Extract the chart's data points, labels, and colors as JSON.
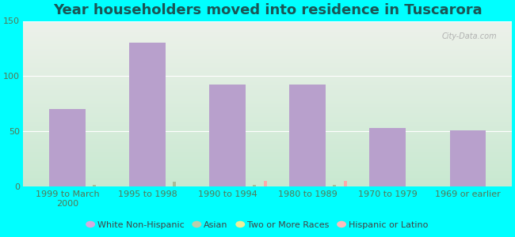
{
  "title": "Year householders moved into residence in Tuscarora",
  "categories": [
    "1999 to March\n2000",
    "1995 to 1998",
    "1990 to 1994",
    "1980 to 1989",
    "1970 to 1979",
    "1969 or earlier"
  ],
  "series": {
    "White Non-Hispanic": [
      70,
      130,
      92,
      92,
      53,
      51
    ],
    "Asian": [
      1,
      4,
      1,
      1,
      0,
      0
    ],
    "Two or More Races": [
      0,
      0,
      0,
      0,
      0,
      0
    ],
    "Hispanic or Latino": [
      0,
      0,
      5,
      5,
      0,
      0
    ]
  },
  "bar_colors": {
    "White Non-Hispanic": "#b8a0cc",
    "Asian": "#aabb99",
    "Two or More Races": "#eeee88",
    "Hispanic or Latino": "#ffaaaa"
  },
  "legend_colors": {
    "White Non-Hispanic": "#d4aadd",
    "Asian": "#bbccaa",
    "Two or More Races": "#eeee99",
    "Hispanic or Latino": "#ffbbbb"
  },
  "ylim": [
    0,
    150
  ],
  "yticks": [
    0,
    50,
    100,
    150
  ],
  "bg_outer": "#00ffff",
  "bg_plot_top": "#edf0ea",
  "bg_plot_bottom": "#c8e8d0",
  "title_fontsize": 13,
  "tick_fontsize": 8,
  "legend_fontsize": 8,
  "bar_width": 0.45,
  "small_bar_width": 0.04,
  "watermark": "City-Data.com"
}
